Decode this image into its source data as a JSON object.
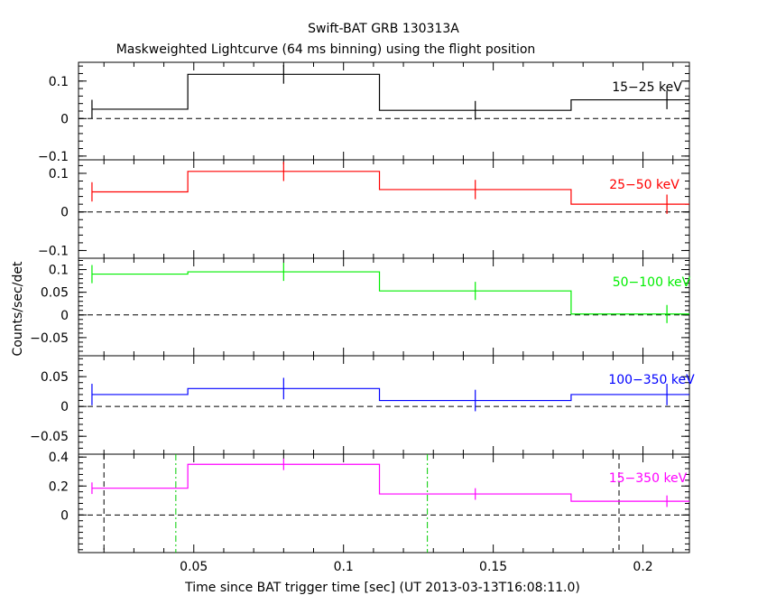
{
  "title": "Swift-BAT GRB 130313A",
  "subtitle": "Maskweighted Lightcurve (64 ms binning) using the flight position",
  "xlabel": "Time since BAT trigger time [sec] (UT 2013-03-13T16:08:11.0)",
  "ylabel": "Counts/sec/det",
  "chart_data": {
    "type": "line",
    "step": true,
    "xlim": [
      0.0115,
      0.2155
    ],
    "x_ticks": [
      0.05,
      0.1,
      0.15,
      0.2
    ],
    "x_tick_labels": [
      "0.05",
      "0.1",
      "0.15",
      "0.2"
    ],
    "bin_edges": [
      0.016,
      0.048,
      0.112,
      0.176,
      0.24
    ],
    "bin_centers": [
      0.016,
      0.08,
      0.144,
      0.208
    ],
    "panels": [
      {
        "name": "15-25 keV",
        "label": "15−25 keV",
        "color": "#000000",
        "ylim": [
          -0.11,
          0.15
        ],
        "y_ticks": [
          0.1,
          0,
          -0.1
        ],
        "y_tick_labels": [
          "0.1",
          "0",
          "−0.1"
        ],
        "values": [
          0.025,
          0.118,
          0.022,
          0.05
        ],
        "errors": [
          0.025,
          0.025,
          0.025,
          0.025
        ],
        "vlines": []
      },
      {
        "name": "25-50 keV",
        "label": "25−50 keV",
        "color": "#ff0000",
        "ylim": [
          -0.12,
          0.135
        ],
        "y_ticks": [
          0.1,
          0,
          -0.1
        ],
        "y_tick_labels": [
          "0.1",
          "0",
          "−0.1"
        ],
        "values": [
          0.052,
          0.105,
          0.058,
          0.02
        ],
        "errors": [
          0.025,
          0.025,
          0.025,
          0.025
        ],
        "vlines": []
      },
      {
        "name": "50-100 keV",
        "label": "50−100 keV",
        "color": "#00ee00",
        "ylim": [
          -0.09,
          0.125
        ],
        "y_ticks": [
          0.1,
          0.05,
          0,
          -0.05
        ],
        "y_tick_labels": [
          "0.1",
          "0.05",
          "0",
          "−0.05"
        ],
        "values": [
          0.09,
          0.095,
          0.053,
          0.002
        ],
        "errors": [
          0.02,
          0.02,
          0.02,
          0.02
        ],
        "vlines": []
      },
      {
        "name": "100-350 keV",
        "label": "100−350 keV",
        "color": "#0000ff",
        "ylim": [
          -0.08,
          0.085
        ],
        "y_ticks": [
          0.05,
          0,
          -0.05
        ],
        "y_tick_labels": [
          "0.05",
          "0",
          "−0.05"
        ],
        "values": [
          0.02,
          0.03,
          0.01,
          0.02
        ],
        "errors": [
          0.018,
          0.018,
          0.018,
          0.018
        ],
        "vlines": []
      },
      {
        "name": "15-350 keV",
        "label": "15−350 keV",
        "color": "#ff00ff",
        "ylim": [
          -0.26,
          0.42
        ],
        "y_ticks": [
          0.4,
          0.2,
          0
        ],
        "y_tick_labels": [
          "0.4",
          "0.2",
          "0"
        ],
        "values": [
          0.185,
          0.35,
          0.145,
          0.095
        ],
        "errors": [
          0.04,
          0.04,
          0.04,
          0.04
        ],
        "vlines": [
          {
            "x": 0.02,
            "color": "#000000",
            "style": "dashed"
          },
          {
            "x": 0.044,
            "color": "#00cc00",
            "style": "dashdot"
          },
          {
            "x": 0.128,
            "color": "#00cc00",
            "style": "dashdot"
          },
          {
            "x": 0.192,
            "color": "#000000",
            "style": "dashed"
          }
        ]
      }
    ]
  }
}
